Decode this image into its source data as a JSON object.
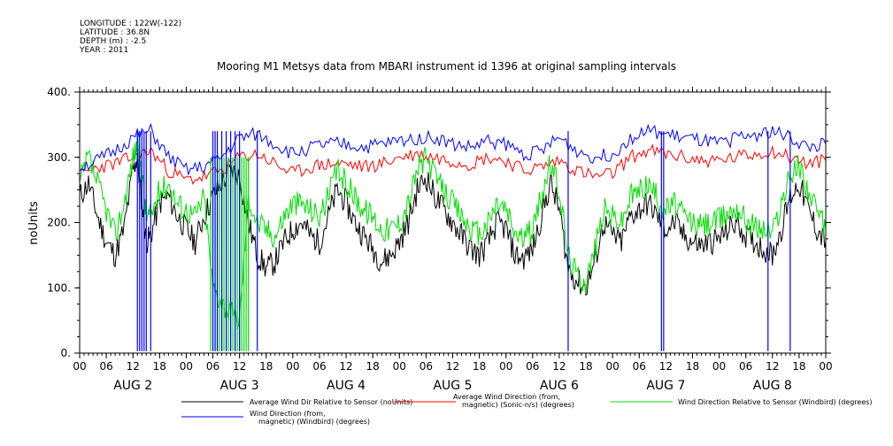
{
  "meta": {
    "longitude": "LONGITUDE : 122W(-122)",
    "latitude": "LATITUDE : 36.8N",
    "depth": "DEPTH (m) : -2.5",
    "year": "YEAR : 2011"
  },
  "title": "Mooring M1 Metsys data from MBARI instrument id 1396 at original sampling intervals",
  "chart_data": {
    "type": "line",
    "title": "Mooring M1 Metsys data from MBARI instrument id 1396 at original sampling intervals",
    "ylabel": "noUnits",
    "xlabel": "",
    "ylim": [
      0,
      400
    ],
    "y_ticks": [
      "0.",
      "100.",
      "200.",
      "300.",
      "400."
    ],
    "y_tick_values": [
      0,
      100,
      200,
      300,
      400
    ],
    "x_range_hours": [
      0,
      168
    ],
    "x_tick_hours": [
      0,
      6,
      12,
      18,
      24,
      30,
      36,
      42,
      48,
      54,
      60,
      66,
      72,
      78,
      84,
      90,
      96,
      102,
      108,
      114,
      120,
      126,
      132,
      138,
      144,
      150,
      156,
      162,
      168
    ],
    "x_tick_labels": [
      "00",
      "06",
      "12",
      "18",
      "00",
      "06",
      "12",
      "18",
      "00",
      "06",
      "12",
      "18",
      "00",
      "06",
      "12",
      "18",
      "00",
      "06",
      "12",
      "18",
      "00",
      "06",
      "12",
      "18",
      "00",
      "06",
      "12",
      "18",
      "00"
    ],
    "day_labels": [
      {
        "hour": 12,
        "label": "AUG  2"
      },
      {
        "hour": 36,
        "label": "AUG  3"
      },
      {
        "hour": 60,
        "label": "AUG  4"
      },
      {
        "hour": 84,
        "label": "AUG  5"
      },
      {
        "hour": 108,
        "label": "AUG  6"
      },
      {
        "hour": 132,
        "label": "AUG  7"
      },
      {
        "hour": 156,
        "label": "AUG  8"
      }
    ],
    "grid": false,
    "legend_position": "bottom",
    "series": [
      {
        "name": "Average Wind Dir Relative to Sensor (noUnits)",
        "color": "#000000",
        "x": [
          0,
          2,
          4,
          6,
          8,
          10,
          12,
          13,
          14,
          15,
          16,
          18,
          20,
          22,
          24,
          26,
          28,
          30,
          32,
          34,
          36,
          38,
          40,
          42,
          44,
          46,
          48,
          50,
          52,
          54,
          56,
          58,
          60,
          62,
          64,
          66,
          68,
          70,
          72,
          74,
          76,
          78,
          80,
          82,
          84,
          86,
          88,
          90,
          92,
          94,
          96,
          98,
          100,
          102,
          104,
          106,
          108,
          110,
          112,
          114,
          116,
          118,
          120,
          122,
          124,
          126,
          128,
          130,
          132,
          134,
          136,
          138,
          140,
          142,
          144,
          146,
          148,
          150,
          152,
          154,
          156,
          158,
          160,
          162,
          164,
          166,
          168
        ],
        "y": [
          240,
          260,
          210,
          170,
          150,
          190,
          280,
          300,
          230,
          170,
          180,
          230,
          240,
          210,
          190,
          170,
          210,
          240,
          260,
          280,
          270,
          200,
          150,
          130,
          140,
          170,
          190,
          200,
          180,
          170,
          210,
          250,
          230,
          200,
          180,
          160,
          140,
          150,
          170,
          200,
          250,
          270,
          240,
          220,
          200,
          180,
          160,
          150,
          170,
          200,
          190,
          150,
          145,
          160,
          210,
          260,
          220,
          130,
          110,
          100,
          140,
          200,
          180,
          170,
          210,
          220,
          230,
          210,
          190,
          200,
          180,
          170,
          165,
          170,
          175,
          190,
          200,
          180,
          170,
          160,
          150,
          190,
          240,
          260,
          220,
          190,
          170
        ]
      },
      {
        "name": "Average Wind Direction (from, magnetic) (Sonic-n/s) (degrees)",
        "color": "#ff0000",
        "x": [
          0,
          4,
          8,
          12,
          16,
          20,
          24,
          28,
          32,
          36,
          40,
          44,
          48,
          52,
          56,
          60,
          64,
          68,
          72,
          76,
          80,
          84,
          88,
          92,
          96,
          100,
          104,
          108,
          112,
          116,
          120,
          124,
          128,
          132,
          136,
          140,
          144,
          148,
          152,
          156,
          160,
          164,
          168
        ],
        "y": [
          270,
          285,
          290,
          300,
          310,
          280,
          265,
          270,
          280,
          300,
          305,
          290,
          275,
          285,
          290,
          290,
          285,
          290,
          300,
          305,
          300,
          295,
          290,
          300,
          295,
          280,
          285,
          295,
          280,
          270,
          275,
          300,
          310,
          305,
          300,
          295,
          295,
          300,
          305,
          310,
          300,
          290,
          295
        ]
      },
      {
        "name": "Wind Direction Relative to Sensor (Windbird) (degrees)",
        "color": "#00dd00",
        "x": [
          0,
          2,
          4,
          6,
          8,
          10,
          12,
          13,
          14,
          15,
          16,
          18,
          20,
          22,
          24,
          26,
          28,
          30,
          32,
          34,
          36,
          38,
          40,
          42,
          44,
          46,
          48,
          50,
          52,
          54,
          56,
          58,
          60,
          62,
          64,
          66,
          68,
          70,
          72,
          74,
          76,
          78,
          80,
          82,
          84,
          86,
          88,
          90,
          92,
          94,
          96,
          98,
          100,
          102,
          104,
          106,
          108,
          110,
          112,
          114,
          116,
          118,
          120,
          122,
          124,
          126,
          128,
          130,
          132,
          134,
          136,
          138,
          140,
          142,
          144,
          146,
          148,
          150,
          152,
          154,
          156,
          158,
          160,
          162,
          164,
          166,
          168
        ],
        "y": [
          260,
          300,
          260,
          220,
          180,
          230,
          300,
          320,
          280,
          210,
          210,
          250,
          260,
          230,
          220,
          210,
          240,
          100,
          80,
          60,
          50,
          240,
          200,
          190,
          180,
          210,
          230,
          230,
          220,
          210,
          240,
          280,
          260,
          240,
          220,
          210,
          190,
          190,
          200,
          230,
          280,
          300,
          270,
          250,
          230,
          210,
          190,
          180,
          200,
          230,
          220,
          185,
          175,
          190,
          240,
          290,
          250,
          150,
          120,
          110,
          160,
          220,
          210,
          200,
          240,
          250,
          260,
          240,
          220,
          230,
          210,
          200,
          195,
          200,
          205,
          215,
          225,
          205,
          195,
          190,
          185,
          230,
          270,
          290,
          250,
          215,
          190
        ]
      },
      {
        "name": "Wind Direction (from, magnetic) (Windbird) (degrees)",
        "color": "#0000ff",
        "x": [
          0,
          4,
          8,
          12,
          16,
          20,
          24,
          28,
          32,
          36,
          40,
          44,
          48,
          52,
          56,
          60,
          64,
          68,
          72,
          76,
          80,
          84,
          88,
          92,
          96,
          100,
          104,
          108,
          112,
          116,
          120,
          124,
          128,
          132,
          136,
          140,
          144,
          148,
          152,
          156,
          160,
          164,
          168
        ],
        "y": [
          285,
          295,
          310,
          330,
          340,
          300,
          280,
          285,
          300,
          330,
          335,
          320,
          305,
          315,
          320,
          320,
          315,
          320,
          325,
          330,
          330,
          320,
          315,
          325,
          320,
          305,
          310,
          330,
          310,
          300,
          305,
          330,
          340,
          335,
          330,
          325,
          320,
          330,
          335,
          340,
          330,
          315,
          320
        ]
      }
    ],
    "dropouts": {
      "description_hours": "time points where the Windbird series drop to near 0",
      "blue": [
        13.0,
        13.5,
        14.0,
        14.5,
        15.0,
        16.0,
        30.0,
        30.5,
        31.0,
        32.0,
        33.0,
        34.0,
        35.0,
        36.0,
        40.0,
        110.0,
        131.0,
        131.5,
        155.0,
        160.0
      ],
      "green": [
        29.5,
        30.0,
        30.5,
        31.0,
        31.5,
        32.0,
        32.5,
        33.0,
        33.5,
        34.0,
        34.5,
        35.0,
        35.5,
        36.0,
        36.5,
        37.0,
        37.5,
        38.0
      ]
    }
  },
  "legend": [
    {
      "label": "Average Wind Dir Relative to Sensor (noUnits)",
      "color": "#000000"
    },
    {
      "label": "Average Wind Direction (from,",
      "label2": "magnetic) (Sonic-n/s) (degrees)",
      "color": "#ff0000"
    },
    {
      "label": "Wind Direction Relative to Sensor (Windbird) (degrees)",
      "color": "#00dd00"
    },
    {
      "label": "Wind Direction (from,",
      "label2": "magnetic) (Windbird) (degrees)",
      "color": "#0000ff"
    }
  ]
}
